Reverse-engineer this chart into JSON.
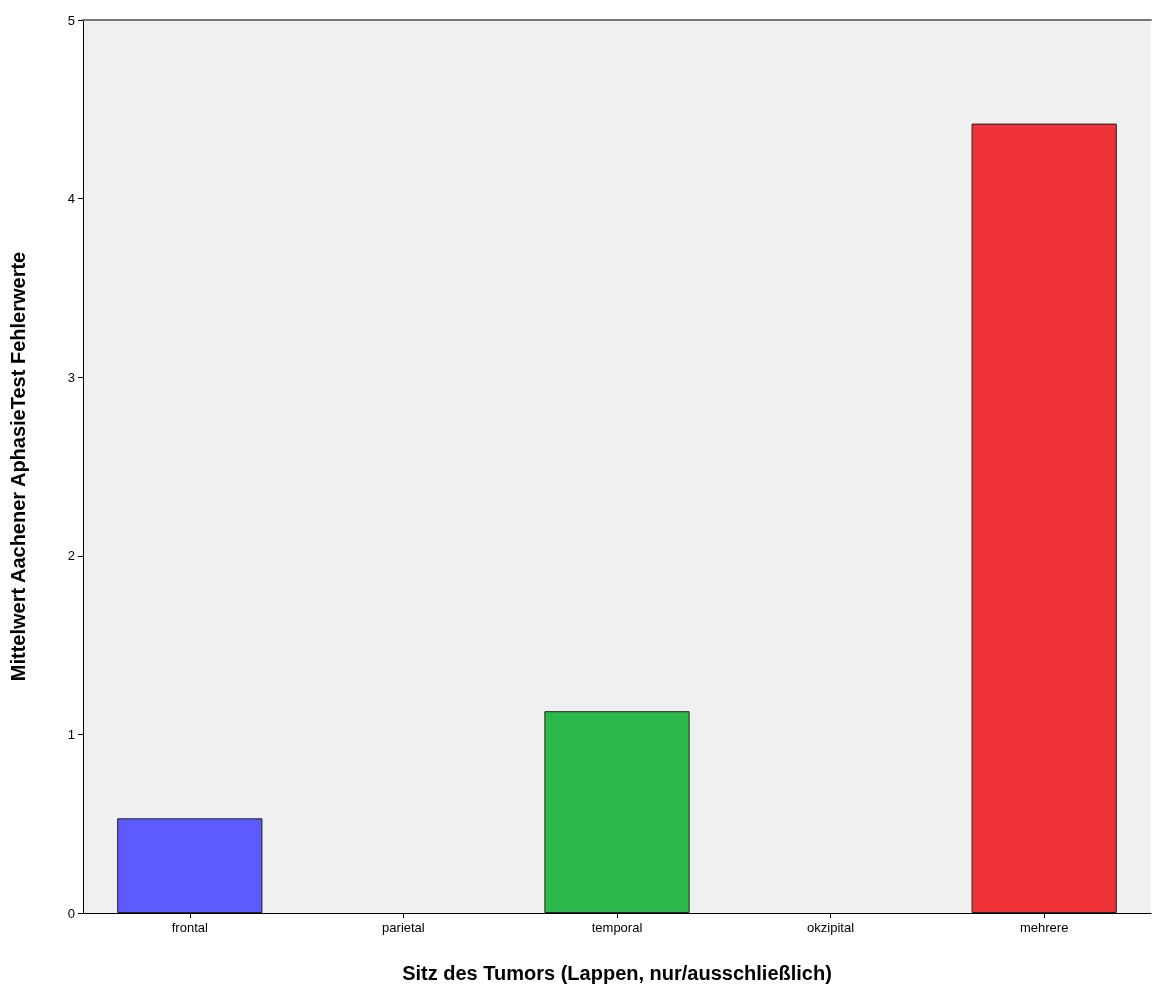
{
  "chart_data": {
    "type": "bar",
    "xlabel": "Sitz des Tumors (Lappen, nur/ausschließlich)",
    "ylabel": "Mittelwert Aachener AphasieTest Fehlerwerte",
    "categories": [
      "frontal",
      "parietal",
      "temporal",
      "okzipital",
      "mehrere"
    ],
    "values": [
      0.53,
      null,
      1.13,
      null,
      4.42
    ],
    "colors": [
      "#5b5bff",
      null,
      "#2db84b",
      null,
      "#ef3138"
    ],
    "ylim": [
      0,
      5
    ],
    "yticks": [
      0,
      1,
      2,
      3,
      4,
      5
    ],
    "grid": false
  }
}
